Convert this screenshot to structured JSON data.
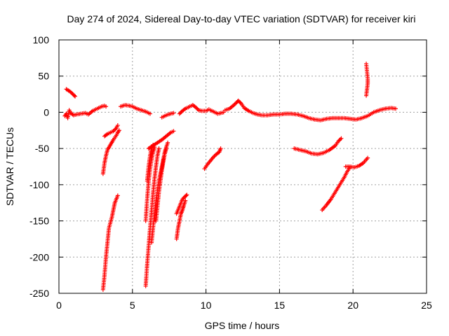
{
  "chart_data": {
    "type": "scatter",
    "title": "Day 274 of 2024, Sidereal Day-to-day VTEC variation (SDTVAR) for receiver kiri",
    "xlabel": "GPS time / hours",
    "ylabel": "SDTVAR / TECUs",
    "xlim": [
      0,
      25
    ],
    "ylim": [
      -250,
      100
    ],
    "xticks": [
      0,
      5,
      10,
      15,
      20,
      25
    ],
    "yticks": [
      100,
      50,
      0,
      -50,
      -100,
      -150,
      -200,
      -250
    ],
    "xtick_labels": [
      "0",
      "5",
      "10",
      "15",
      "20",
      "25"
    ],
    "ytick_labels": [
      "100",
      "50",
      "0",
      "-50",
      "-100",
      "-150",
      "-200",
      "-250"
    ],
    "grid": true,
    "marker": "+",
    "color": "#ff0000",
    "series": [
      {
        "segments": [
          [
            [
              0.5,
              32
            ],
            [
              0.8,
              28
            ],
            [
              1.0,
              24
            ],
            [
              1.1,
              22
            ]
          ],
          [
            [
              0.4,
              -5
            ],
            [
              0.5,
              -2
            ],
            [
              0.6,
              -8
            ],
            [
              0.7,
              3
            ],
            [
              0.8,
              -1
            ],
            [
              1.0,
              -4
            ],
            [
              1.2,
              -3
            ],
            [
              1.5,
              -2
            ],
            [
              1.8,
              -1
            ],
            [
              2.0,
              -3
            ],
            [
              2.3,
              2
            ],
            [
              2.6,
              5
            ],
            [
              2.9,
              8
            ],
            [
              3.1,
              9
            ],
            [
              3.2,
              8
            ]
          ],
          [
            [
              3.0,
              -85
            ],
            [
              3.1,
              -70
            ],
            [
              3.2,
              -60
            ],
            [
              3.3,
              -52
            ],
            [
              3.5,
              -45
            ],
            [
              3.7,
              -38
            ],
            [
              3.9,
              -32
            ],
            [
              4.0,
              -28
            ],
            [
              4.1,
              -25
            ]
          ],
          [
            [
              3.1,
              -33
            ],
            [
              3.3,
              -30
            ],
            [
              3.5,
              -28
            ],
            [
              3.7,
              -26
            ],
            [
              3.9,
              -22
            ],
            [
              4.0,
              -18
            ]
          ],
          [
            [
              3.0,
              -245
            ],
            [
              3.1,
              -225
            ],
            [
              3.2,
              -200
            ],
            [
              3.3,
              -180
            ],
            [
              3.4,
              -160
            ],
            [
              3.6,
              -145
            ],
            [
              3.7,
              -135
            ],
            [
              3.8,
              -125
            ],
            [
              4.0,
              -115
            ]
          ],
          [
            [
              4.2,
              8
            ],
            [
              4.5,
              10
            ],
            [
              4.8,
              9
            ],
            [
              5.0,
              8
            ],
            [
              5.3,
              5
            ],
            [
              5.6,
              3
            ],
            [
              5.9,
              1
            ],
            [
              6.0,
              0
            ],
            [
              6.2,
              -2
            ]
          ],
          [
            [
              5.9,
              -240
            ],
            [
              6.0,
              -210
            ],
            [
              6.1,
              -185
            ],
            [
              6.2,
              -160
            ],
            [
              6.3,
              -135
            ],
            [
              6.4,
              -112
            ],
            [
              6.5,
              -92
            ],
            [
              6.6,
              -75
            ],
            [
              6.7,
              -60
            ],
            [
              6.8,
              -50
            ]
          ],
          [
            [
              5.9,
              -150
            ],
            [
              6.0,
              -120
            ],
            [
              6.1,
              -95
            ],
            [
              6.2,
              -78
            ],
            [
              6.3,
              -65
            ],
            [
              6.4,
              -55
            ],
            [
              6.5,
              -48
            ]
          ],
          [
            [
              6.0,
              -95
            ],
            [
              6.1,
              -75
            ],
            [
              6.2,
              -60
            ],
            [
              6.3,
              -50
            ],
            [
              6.4,
              -45
            ]
          ],
          [
            [
              6.1,
              -50
            ],
            [
              6.4,
              -46
            ],
            [
              6.7,
              -42
            ],
            [
              7.0,
              -38
            ],
            [
              7.3,
              -33
            ],
            [
              7.6,
              -28
            ],
            [
              7.8,
              -26
            ]
          ],
          [
            [
              6.3,
              -180
            ],
            [
              6.4,
              -160
            ],
            [
              6.5,
              -140
            ],
            [
              6.6,
              -122
            ],
            [
              6.7,
              -108
            ],
            [
              6.8,
              -95
            ],
            [
              6.9,
              -85
            ],
            [
              7.0,
              -75
            ],
            [
              7.1,
              -65
            ],
            [
              7.2,
              -55
            ],
            [
              7.3,
              -48
            ],
            [
              7.4,
              -42
            ]
          ],
          [
            [
              6.6,
              -150
            ],
            [
              6.7,
              -130
            ],
            [
              6.8,
              -110
            ],
            [
              6.9,
              -95
            ],
            [
              7.0,
              -80
            ],
            [
              7.1,
              -68
            ],
            [
              7.2,
              -57
            ],
            [
              7.3,
              -50
            ]
          ],
          [
            [
              7.0,
              -7
            ],
            [
              7.3,
              -4
            ],
            [
              7.6,
              -2
            ],
            [
              7.8,
              -1
            ]
          ],
          [
            [
              8.0,
              -175
            ],
            [
              8.1,
              -160
            ],
            [
              8.2,
              -150
            ],
            [
              8.3,
              -140
            ],
            [
              8.4,
              -135
            ],
            [
              8.5,
              -128
            ],
            [
              8.6,
              -122
            ]
          ],
          [
            [
              8.0,
              -140
            ],
            [
              8.2,
              -130
            ],
            [
              8.4,
              -120
            ],
            [
              8.6,
              -116
            ],
            [
              8.7,
              -114
            ]
          ],
          [
            [
              8.2,
              -2
            ],
            [
              8.4,
              2
            ],
            [
              8.6,
              5
            ],
            [
              8.9,
              8
            ],
            [
              9.1,
              10
            ],
            [
              9.3,
              7
            ],
            [
              9.5,
              3
            ],
            [
              9.7,
              2
            ],
            [
              10.0,
              2
            ],
            [
              10.2,
              4
            ],
            [
              10.5,
              1
            ],
            [
              10.8,
              -2
            ],
            [
              11.0,
              -1
            ],
            [
              11.2,
              0
            ]
          ],
          [
            [
              9.9,
              -78
            ],
            [
              10.1,
              -72
            ],
            [
              10.3,
              -67
            ],
            [
              10.5,
              -62
            ],
            [
              10.7,
              -58
            ],
            [
              10.9,
              -55
            ],
            [
              11.0,
              -50
            ]
          ],
          [
            [
              11.3,
              3
            ],
            [
              11.6,
              5
            ],
            [
              11.9,
              10
            ],
            [
              12.1,
              14
            ],
            [
              12.2,
              16
            ],
            [
              12.4,
              12
            ],
            [
              12.6,
              6
            ],
            [
              12.9,
              2
            ],
            [
              13.2,
              -1
            ],
            [
              13.5,
              -3
            ],
            [
              13.8,
              -4
            ],
            [
              14.2,
              -4
            ],
            [
              14.6,
              -3
            ],
            [
              15.0,
              -3
            ],
            [
              15.4,
              -2
            ],
            [
              15.8,
              -2
            ],
            [
              16.2,
              -3
            ],
            [
              16.6,
              -5
            ],
            [
              17.0,
              -8
            ],
            [
              17.4,
              -10
            ],
            [
              17.8,
              -11
            ],
            [
              18.2,
              -9
            ],
            [
              18.6,
              -8
            ],
            [
              19.0,
              -8
            ],
            [
              19.4,
              -8
            ],
            [
              19.8,
              -9
            ],
            [
              20.2,
              -10
            ],
            [
              20.6,
              -8
            ],
            [
              21.0,
              -5
            ],
            [
              21.4,
              0
            ],
            [
              21.8,
              3
            ],
            [
              22.2,
              5
            ],
            [
              22.6,
              6
            ],
            [
              22.9,
              5
            ]
          ],
          [
            [
              16.0,
              -50
            ],
            [
              16.4,
              -52
            ],
            [
              16.8,
              -54
            ],
            [
              17.2,
              -57
            ],
            [
              17.6,
              -58
            ],
            [
              18.0,
              -56
            ],
            [
              18.4,
              -52
            ],
            [
              18.8,
              -46
            ],
            [
              19.0,
              -40
            ],
            [
              19.2,
              -36
            ]
          ],
          [
            [
              17.9,
              -135
            ],
            [
              18.2,
              -128
            ],
            [
              18.5,
              -120
            ],
            [
              18.8,
              -110
            ],
            [
              19.1,
              -100
            ],
            [
              19.4,
              -90
            ],
            [
              19.6,
              -82
            ],
            [
              19.8,
              -76
            ]
          ],
          [
            [
              19.5,
              -75
            ],
            [
              19.8,
              -75
            ],
            [
              20.1,
              -76
            ],
            [
              20.4,
              -74
            ],
            [
              20.7,
              -70
            ],
            [
              21.0,
              -63
            ]
          ],
          [
            [
              20.9,
              23
            ],
            [
              21.0,
              40
            ],
            [
              21.0,
              46
            ],
            [
              20.9,
              67
            ]
          ]
        ]
      }
    ]
  }
}
